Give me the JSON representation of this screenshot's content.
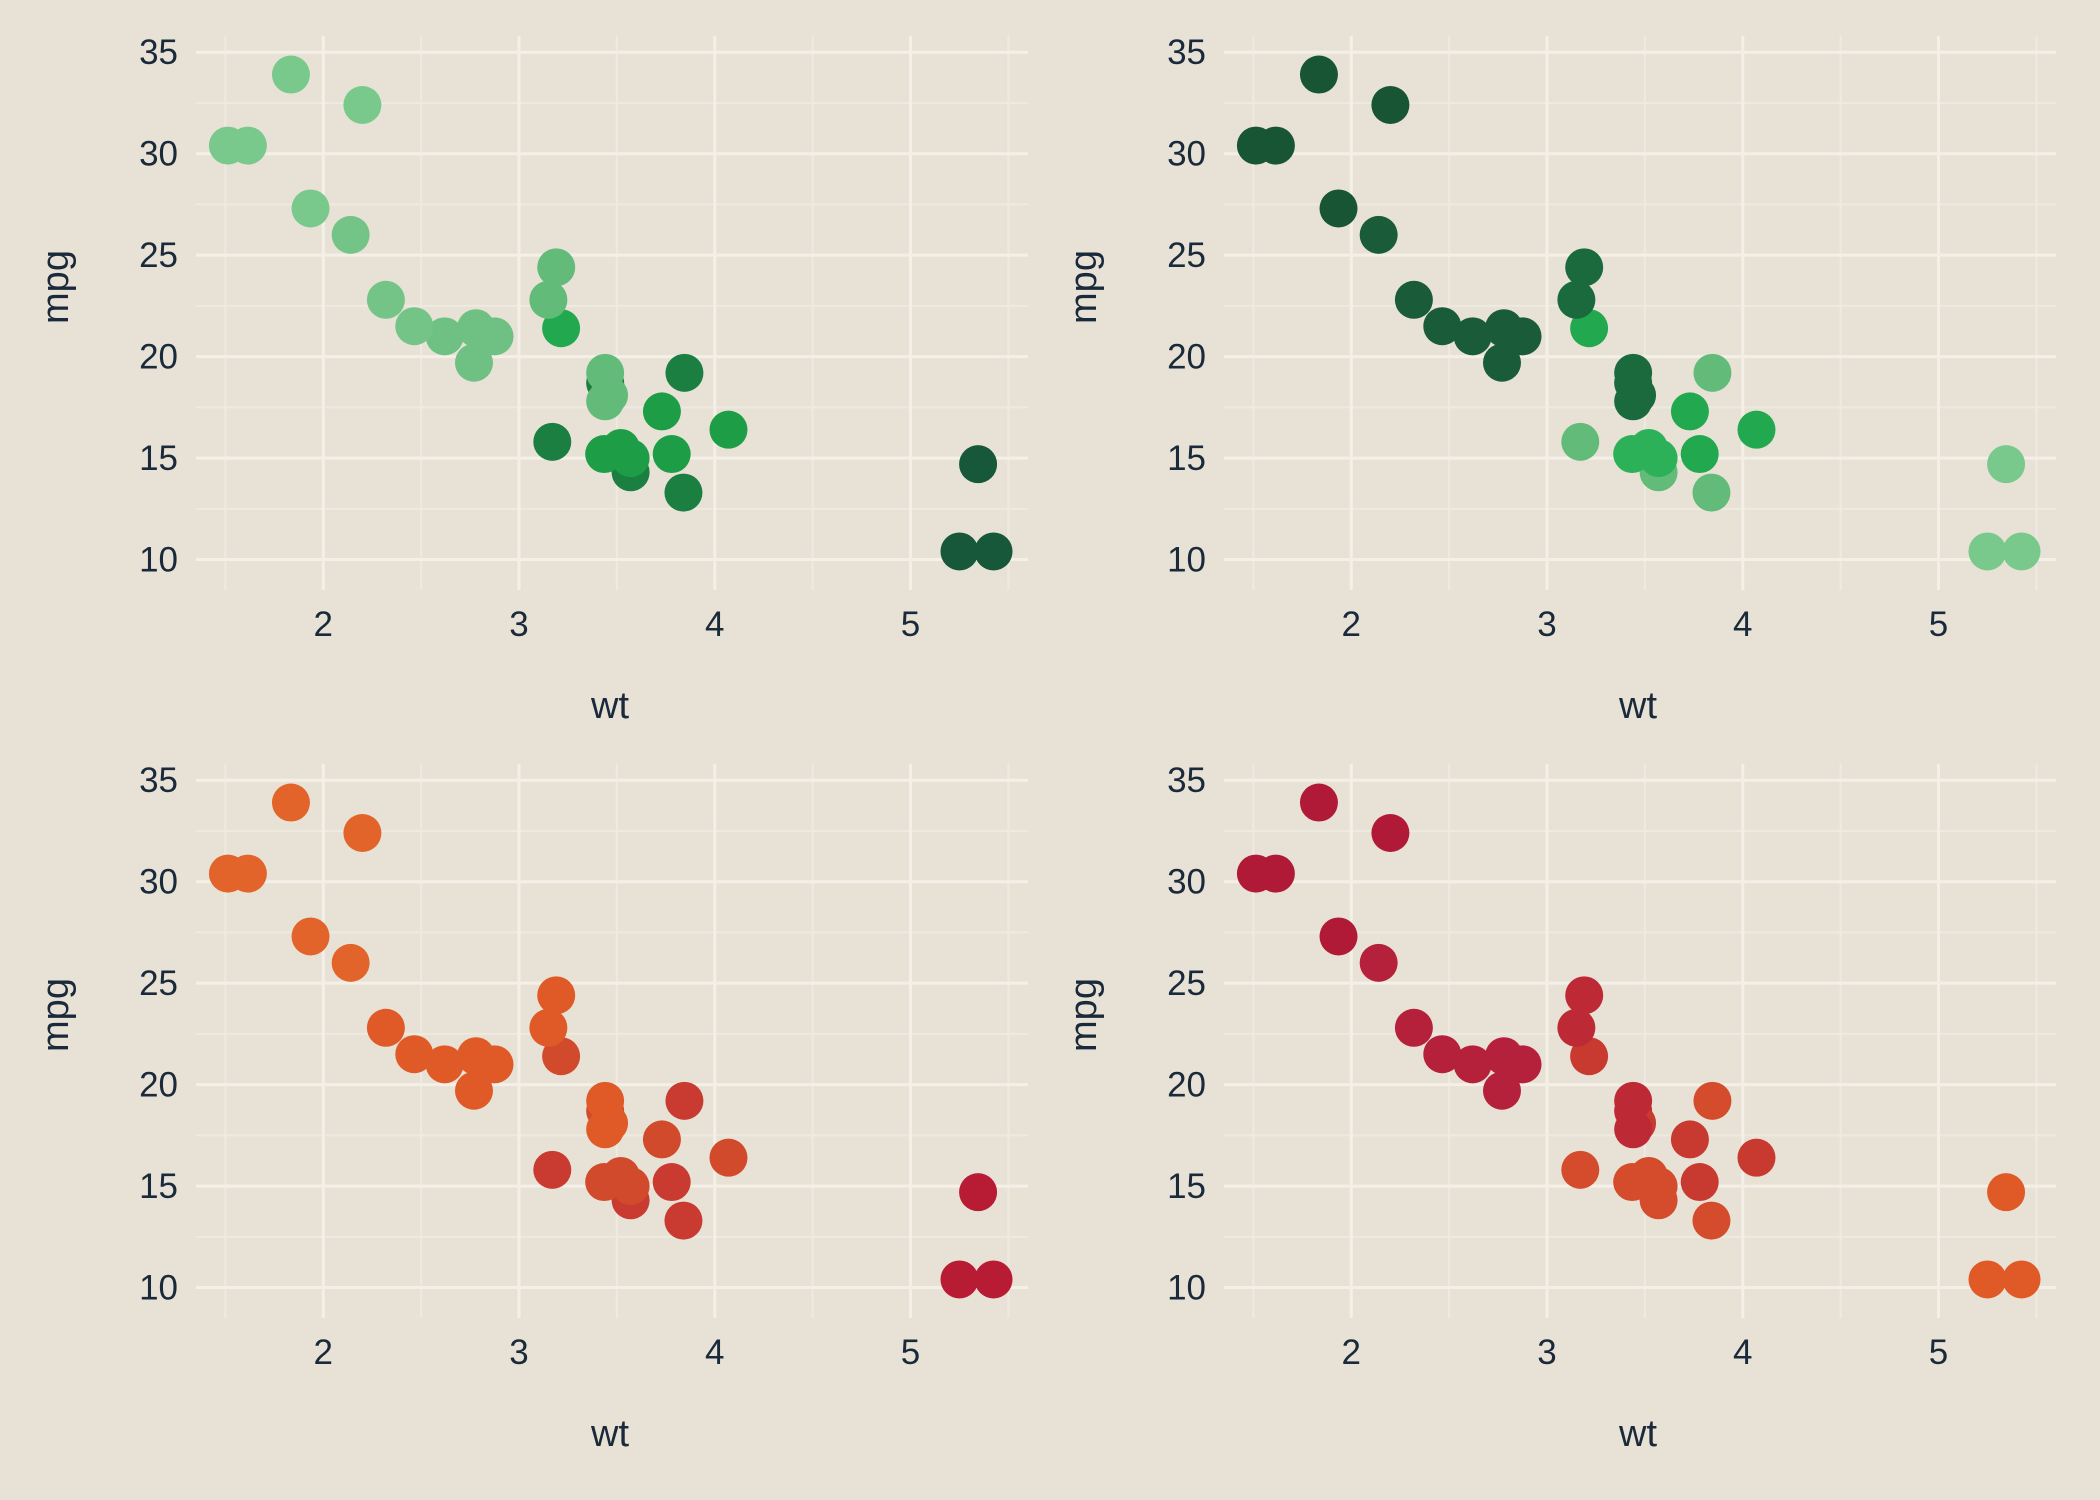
{
  "chart_data": [
    {
      "type": "scatter",
      "xlabel": "wt",
      "ylabel": "mpg",
      "xlim": [
        1.35,
        5.6
      ],
      "ylim": [
        8.5,
        35.8
      ],
      "xticks": [
        2,
        3,
        4,
        5
      ],
      "yticks": [
        10,
        15,
        20,
        25,
        30,
        35
      ],
      "grid": true,
      "color_scale": "light green (light wt) to dark green (heavy wt)",
      "x": [
        2.62,
        2.875,
        2.32,
        3.215,
        3.44,
        3.46,
        3.57,
        3.19,
        3.15,
        3.44,
        3.44,
        4.07,
        3.73,
        3.78,
        5.25,
        5.424,
        5.345,
        2.2,
        1.615,
        1.835,
        2.465,
        3.52,
        3.435,
        3.84,
        3.845,
        1.935,
        2.14,
        1.513,
        3.17,
        2.77,
        3.57,
        2.78
      ],
      "y": [
        21.0,
        21.0,
        22.8,
        21.4,
        18.7,
        18.1,
        14.3,
        24.4,
        22.8,
        19.2,
        17.8,
        16.4,
        17.3,
        15.2,
        10.4,
        10.4,
        14.7,
        32.4,
        30.4,
        33.9,
        21.5,
        15.5,
        15.2,
        13.3,
        19.2,
        27.3,
        26.0,
        30.4,
        15.8,
        19.7,
        15.0,
        21.4
      ],
      "colors": [
        "#6ec083",
        "#6ec083",
        "#74c487",
        "#22a84f",
        "#1a7f40",
        "#62bb79",
        "#1a7f40",
        "#62bb79",
        "#62bb79",
        "#62bb79",
        "#62bb79",
        "#1e9d47",
        "#1e9d47",
        "#1e9d47",
        "#17573a",
        "#17573a",
        "#17573a",
        "#7ac98c",
        "#7ac98c",
        "#7ac98c",
        "#74c487",
        "#1e9d47",
        "#1e9d47",
        "#1a7f40",
        "#1a7f40",
        "#7ac98c",
        "#74c487",
        "#7ac98c",
        "#1a7f40",
        "#6ec083",
        "#1e9d47",
        "#6ec083"
      ]
    },
    {
      "type": "scatter",
      "xlabel": "wt",
      "ylabel": "mpg",
      "xlim": [
        1.35,
        5.6
      ],
      "ylim": [
        8.5,
        35.8
      ],
      "xticks": [
        2,
        3,
        4,
        5
      ],
      "yticks": [
        10,
        15,
        20,
        25,
        30,
        35
      ],
      "grid": true,
      "color_scale": "dark green (light wt) to light green (heavy wt)",
      "x": [
        2.62,
        2.875,
        2.32,
        3.215,
        3.44,
        3.46,
        3.57,
        3.19,
        3.15,
        3.44,
        3.44,
        4.07,
        3.73,
        3.78,
        5.25,
        5.424,
        5.345,
        2.2,
        1.615,
        1.835,
        2.465,
        3.52,
        3.435,
        3.84,
        3.845,
        1.935,
        2.14,
        1.513,
        3.17,
        2.77,
        3.57,
        2.78
      ],
      "y": [
        21.0,
        21.0,
        22.8,
        21.4,
        18.7,
        18.1,
        14.3,
        24.4,
        22.8,
        19.2,
        17.8,
        16.4,
        17.3,
        15.2,
        10.4,
        10.4,
        14.7,
        32.4,
        30.4,
        33.9,
        21.5,
        15.5,
        15.2,
        13.3,
        19.2,
        27.3,
        26.0,
        30.4,
        15.8,
        19.7,
        15.0,
        21.4
      ],
      "colors": [
        "#1a5b3a",
        "#1a5b3a",
        "#1a5b3a",
        "#22a84f",
        "#1a6a3e",
        "#1a6a3e",
        "#62bb79",
        "#1a6a3e",
        "#1a6a3e",
        "#1a6a3e",
        "#1a6a3e",
        "#22a84f",
        "#22a84f",
        "#22a84f",
        "#7ac98c",
        "#7ac98c",
        "#7ac98c",
        "#175535",
        "#175535",
        "#175535",
        "#1a5b3a",
        "#2cb058",
        "#2cb058",
        "#62bb79",
        "#62bb79",
        "#175535",
        "#1a5b3a",
        "#175535",
        "#62bb79",
        "#1a5b3a",
        "#2cb058",
        "#1a5b3a"
      ]
    },
    {
      "type": "scatter",
      "xlabel": "wt",
      "ylabel": "mpg",
      "xlim": [
        1.35,
        5.6
      ],
      "ylim": [
        8.5,
        35.8
      ],
      "xticks": [
        2,
        3,
        4,
        5
      ],
      "yticks": [
        10,
        15,
        20,
        25,
        30,
        35
      ],
      "grid": true,
      "color_scale": "orange (light wt) to crimson (heavy wt)",
      "x": [
        2.62,
        2.875,
        2.32,
        3.215,
        3.44,
        3.46,
        3.57,
        3.19,
        3.15,
        3.44,
        3.44,
        4.07,
        3.73,
        3.78,
        5.25,
        5.424,
        5.345,
        2.2,
        1.615,
        1.835,
        2.465,
        3.52,
        3.435,
        3.84,
        3.845,
        1.935,
        2.14,
        1.513,
        3.17,
        2.77,
        3.57,
        2.78
      ],
      "y": [
        21.0,
        21.0,
        22.8,
        21.4,
        18.7,
        18.1,
        14.3,
        24.4,
        22.8,
        19.2,
        17.8,
        16.4,
        17.3,
        15.2,
        10.4,
        10.4,
        14.7,
        32.4,
        30.4,
        33.9,
        21.5,
        15.5,
        15.2,
        13.3,
        19.2,
        27.3,
        26.0,
        30.4,
        15.8,
        19.7,
        15.0,
        21.4
      ],
      "colors": [
        "#e05a28",
        "#e05a28",
        "#e05a28",
        "#d14a2c",
        "#d14a2c",
        "#e05a28",
        "#c93a30",
        "#e05a28",
        "#e05a28",
        "#e05a28",
        "#e05a28",
        "#d14a2c",
        "#d14a2c",
        "#c93a30",
        "#b81c34",
        "#b81c34",
        "#b81c34",
        "#e2642a",
        "#e2642a",
        "#e2642a",
        "#e05a28",
        "#d14a2c",
        "#d14a2c",
        "#c93a30",
        "#c93a30",
        "#e2642a",
        "#e2642a",
        "#e2642a",
        "#c93a30",
        "#e05a28",
        "#d14a2c",
        "#e05a28"
      ]
    },
    {
      "type": "scatter",
      "xlabel": "wt",
      "ylabel": "mpg",
      "xlim": [
        1.35,
        5.6
      ],
      "ylim": [
        8.5,
        35.8
      ],
      "xticks": [
        2,
        3,
        4,
        5
      ],
      "yticks": [
        10,
        15,
        20,
        25,
        30,
        35
      ],
      "grid": true,
      "color_scale": "crimson (light wt) to orange (heavy wt)",
      "x": [
        2.62,
        2.875,
        2.32,
        3.215,
        3.44,
        3.46,
        3.57,
        3.19,
        3.15,
        3.44,
        3.44,
        4.07,
        3.73,
        3.78,
        5.25,
        5.424,
        5.345,
        2.2,
        1.615,
        1.835,
        2.465,
        3.52,
        3.435,
        3.84,
        3.845,
        1.935,
        2.14,
        1.513,
        3.17,
        2.77,
        3.57,
        2.78
      ],
      "y": [
        21.0,
        21.0,
        22.8,
        21.4,
        18.7,
        18.1,
        14.3,
        24.4,
        22.8,
        19.2,
        17.8,
        16.4,
        17.3,
        15.2,
        10.4,
        10.4,
        14.7,
        32.4,
        30.4,
        33.9,
        21.5,
        15.5,
        15.2,
        13.3,
        19.2,
        27.3,
        26.0,
        30.4,
        15.8,
        19.7,
        15.0,
        21.4
      ],
      "colors": [
        "#b5203a",
        "#b5203a",
        "#b5203a",
        "#c83a30",
        "#bd2a36",
        "#c83a30",
        "#d44c2c",
        "#bd2a36",
        "#bd2a36",
        "#bd2a36",
        "#bd2a36",
        "#c83a30",
        "#c83a30",
        "#c83a30",
        "#e05a28",
        "#e05a28",
        "#e05a28",
        "#b01a36",
        "#b01a36",
        "#b01a36",
        "#b5203a",
        "#d44c2c",
        "#d44c2c",
        "#d44c2c",
        "#d44c2c",
        "#b01a36",
        "#b5203a",
        "#b01a36",
        "#d44c2c",
        "#b5203a",
        "#d44c2c",
        "#b5203a"
      ]
    }
  ]
}
